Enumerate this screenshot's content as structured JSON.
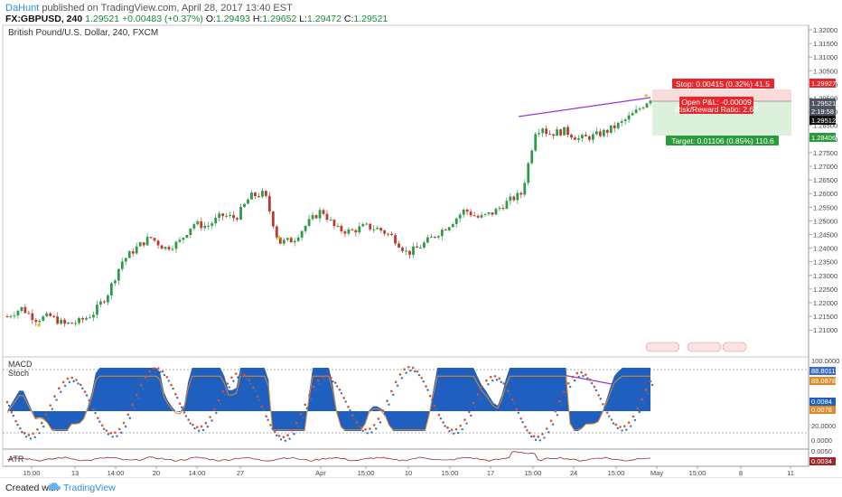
{
  "header": {
    "user": "DaHunt",
    "published": "published on TradingView.com, April 28, 2017 13:40 EST",
    "symbol": "FX:GBPUSD, 240",
    "last": "1.29521",
    "change": "+0.00483 (+0.37%)",
    "o_label": "O:",
    "o": "1.29493",
    "h_label": "H:",
    "h": "1.29652",
    "l_label": "L:",
    "l": "1.29472",
    "c_label": "C:",
    "c": "1.29521"
  },
  "chart_title": "British Pound/U.S. Dollar, 240, FXCM",
  "price_axis": [
    "1.32000",
    "1.31500",
    "1.31000",
    "1.30500",
    "1.30000",
    "1.29500",
    "1.29000",
    "1.28500",
    "1.28000",
    "1.27500",
    "1.27000",
    "1.26500",
    "1.26000",
    "1.25500",
    "1.25000",
    "1.24500",
    "1.24000",
    "1.23500",
    "1.23000",
    "1.22500",
    "1.22000",
    "1.21500",
    "1.21000"
  ],
  "price_badges": {
    "stop_price": "1.29927",
    "last_price": "1.29521",
    "countdown": "2:19:58",
    "price_2": "1.29512",
    "target_price": "1.28406"
  },
  "position": {
    "stop_label": "Stop: 0.00415 (0.32%) 41.5",
    "pnl_label": "Open P&L: -0.00009",
    "rr_label": "Risk/Reward Ratio: 2.67",
    "target_label": "Target: 0.01106 (0.85%) 110.6"
  },
  "indicators": {
    "macd": "MACD",
    "stoch": "Stoch",
    "atr": "ATR"
  },
  "osc_axis": {
    "v100": "100.0000",
    "stoch_k": "88.8011",
    "stoch_d": "88.0878",
    "macd_hist": "0.0084",
    "macd_sig": "0.0078",
    "v20": "20.0000",
    "v0": "0.0000",
    "atr_top": "0.0050",
    "atr_val": "0.0034"
  },
  "time_axis": [
    "15:00",
    "13",
    "14:00",
    "20",
    "14:00",
    "27",
    "Apr",
    "15:00",
    "10",
    "15:00",
    "17",
    "15:00",
    "24",
    "15:00",
    "May",
    "15:00",
    "8",
    "11"
  ],
  "footer": {
    "created": "Created with",
    "brand": "TradingView"
  },
  "colors": {
    "up": "#2e9a4a",
    "down": "#c0392b",
    "macd_fill": "#1e5fbf",
    "trendline": "#9b30d9",
    "stop_red": "#e8262b",
    "target_green": "#2a9b3a"
  },
  "chart_data": {
    "type": "candlestick",
    "title": "British Pound/U.S. Dollar, 240, FXCM",
    "x_labels": [
      "15:00",
      "13",
      "14:00",
      "20",
      "14:00",
      "27",
      "Apr",
      "15:00",
      "10",
      "15:00",
      "17",
      "15:00",
      "24",
      "15:00",
      "May",
      "15:00",
      "8",
      "11"
    ],
    "ylim": [
      1.205,
      1.323
    ],
    "price_path": [
      [
        0,
        1.215
      ],
      [
        5,
        1.218
      ],
      [
        10,
        1.214
      ],
      [
        15,
        1.215
      ],
      [
        20,
        1.212
      ],
      [
        25,
        1.213
      ],
      [
        30,
        1.216
      ],
      [
        35,
        1.223
      ],
      [
        40,
        1.235
      ],
      [
        45,
        1.24
      ],
      [
        50,
        1.244
      ],
      [
        55,
        1.24
      ],
      [
        60,
        1.242
      ],
      [
        65,
        1.249
      ],
      [
        70,
        1.248
      ],
      [
        75,
        1.252
      ],
      [
        80,
        1.251
      ],
      [
        85,
        1.259
      ],
      [
        90,
        1.26
      ],
      [
        95,
        1.242
      ],
      [
        100,
        1.243
      ],
      [
        105,
        1.249
      ],
      [
        110,
        1.254
      ],
      [
        115,
        1.247
      ],
      [
        120,
        1.246
      ],
      [
        125,
        1.248
      ],
      [
        130,
        1.247
      ],
      [
        135,
        1.244
      ],
      [
        140,
        1.238
      ],
      [
        145,
        1.241
      ],
      [
        150,
        1.245
      ],
      [
        155,
        1.249
      ],
      [
        160,
        1.254
      ],
      [
        165,
        1.251
      ],
      [
        170,
        1.253
      ],
      [
        175,
        1.257
      ],
      [
        180,
        1.26
      ],
      [
        185,
        1.284
      ],
      [
        190,
        1.282
      ],
      [
        195,
        1.283
      ],
      [
        200,
        1.28
      ],
      [
        205,
        1.281
      ],
      [
        210,
        1.283
      ],
      [
        215,
        1.286
      ],
      [
        220,
        1.29
      ],
      [
        225,
        1.295
      ]
    ]
  }
}
